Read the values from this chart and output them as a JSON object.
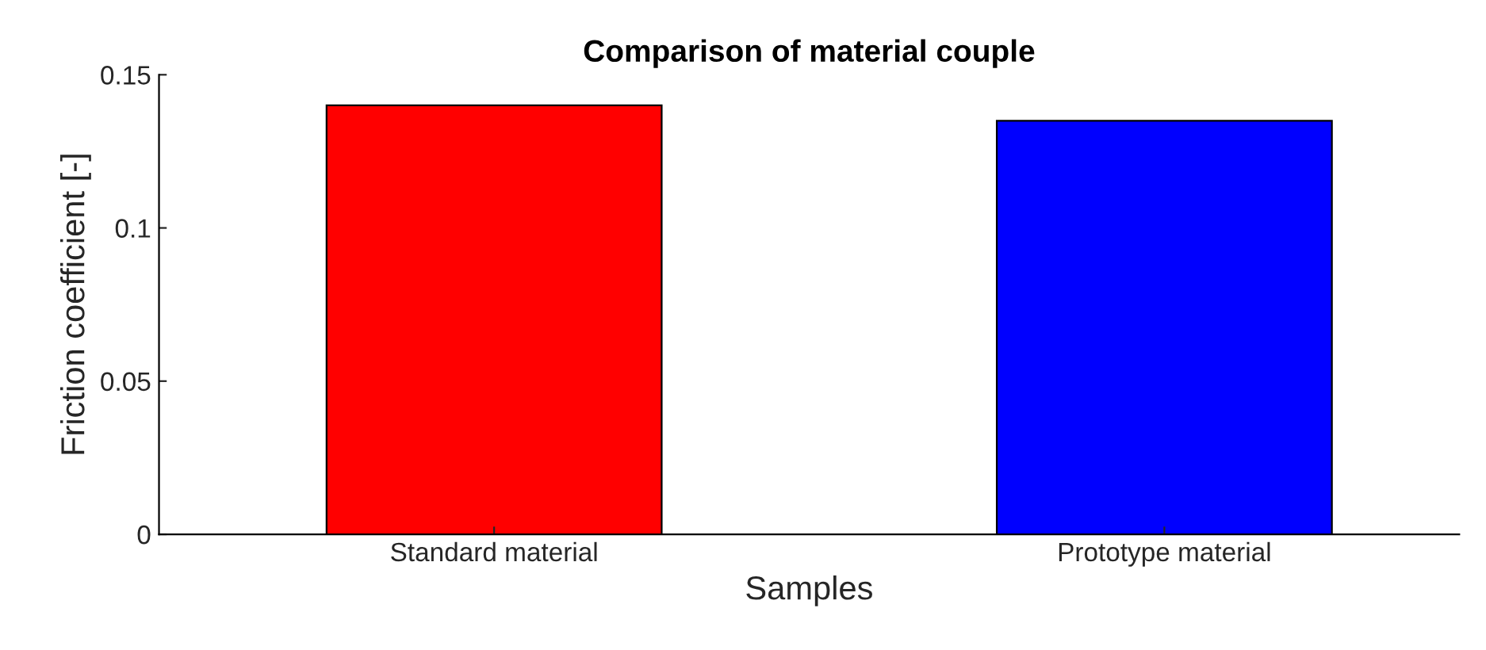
{
  "chart_data": {
    "type": "bar",
    "title": "Comparison of material couple",
    "xlabel": "Samples",
    "ylabel": "Friction coefficient [-]",
    "categories": [
      "Standard material",
      "Prototype material"
    ],
    "values": [
      0.14,
      0.135
    ],
    "colors": [
      "#ff0000",
      "#0000ff"
    ],
    "ylim": [
      0,
      0.15
    ],
    "yticks": [
      0,
      0.05,
      0.1,
      0.15
    ],
    "grid": false
  }
}
